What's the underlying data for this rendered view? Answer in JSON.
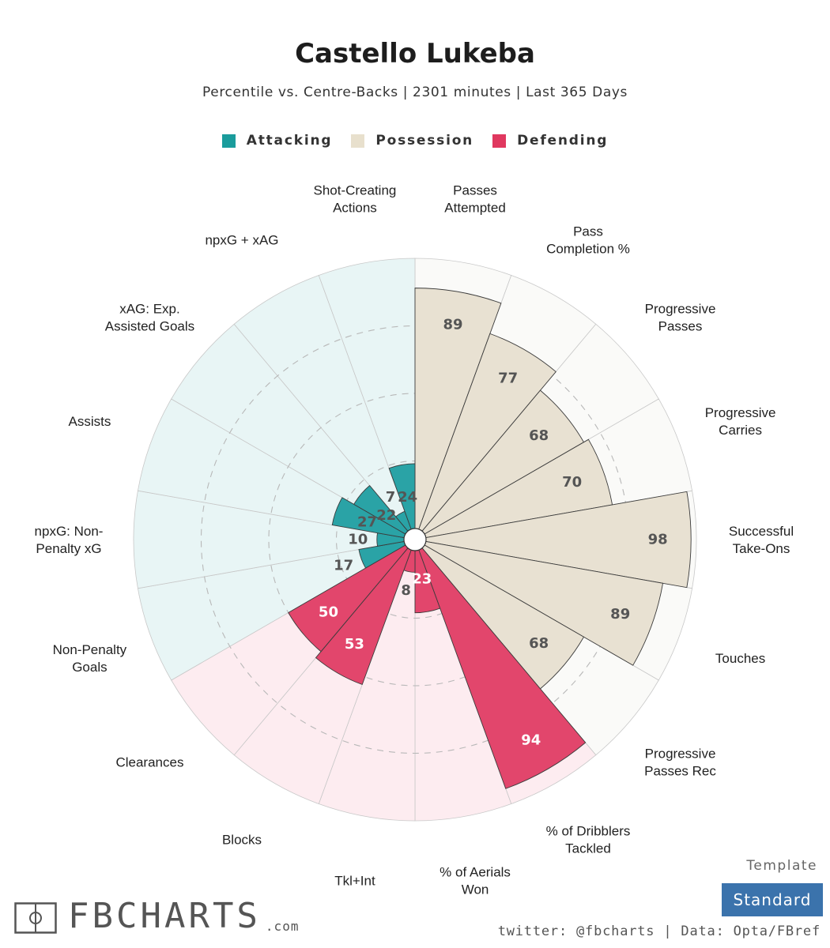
{
  "header": {
    "title": "Castello Lukeba",
    "subtitle": "Percentile vs. Centre-Backs | 2301 minutes | Last 365 Days"
  },
  "legend": [
    {
      "label": "Attacking",
      "color": "#1a9c9c"
    },
    {
      "label": "Possession",
      "color": "#e8e0cd"
    },
    {
      "label": "Defending",
      "color": "#e0385f"
    }
  ],
  "colors": {
    "attacking_fill": "#2aa3a6",
    "attacking_bg": "#e8f5f5",
    "possession_fill": "#e8e1d2",
    "possession_bg": "#fafaf8",
    "defending_fill": "#e2466c",
    "defending_bg": "#fdecf0"
  },
  "chart_data": {
    "type": "polar-bar",
    "title": "Castello Lukeba",
    "subtitle": "Percentile vs. Centre-Backs | 2301 minutes | Last 365 Days",
    "rlim": [
      0,
      100
    ],
    "grid": true,
    "categories": [
      {
        "label": "Passes\nAttempted",
        "value": 89,
        "group": "Possession"
      },
      {
        "label": "Pass\nCompletion %",
        "value": 77,
        "group": "Possession"
      },
      {
        "label": "Progressive\nPasses",
        "value": 68,
        "group": "Possession"
      },
      {
        "label": "Progressive\nCarries",
        "value": 70,
        "group": "Possession"
      },
      {
        "label": "Successful\nTake-Ons",
        "value": 98,
        "group": "Possession"
      },
      {
        "label": "Touches",
        "value": 89,
        "group": "Possession"
      },
      {
        "label": "Progressive\nPasses Rec",
        "value": 68,
        "group": "Possession"
      },
      {
        "label": "% of Dribblers\nTackled",
        "value": 94,
        "group": "Defending"
      },
      {
        "label": "% of Aerials\nWon",
        "value": 23,
        "group": "Defending"
      },
      {
        "label": "Tkl+Int",
        "value": 8,
        "group": "Defending"
      },
      {
        "label": "Blocks",
        "value": 53,
        "group": "Defending"
      },
      {
        "label": "Clearances",
        "value": 50,
        "group": "Defending"
      },
      {
        "label": "Non-Penalty\nGoals",
        "value": 17,
        "group": "Attacking"
      },
      {
        "label": "npxG: Non-\nPenalty xG",
        "value": 10,
        "group": "Attacking"
      },
      {
        "label": "Assists",
        "value": 27,
        "group": "Attacking"
      },
      {
        "label": "xAG: Exp.\nAssisted Goals",
        "value": 22,
        "group": "Attacking"
      },
      {
        "label": "npxG + xAG",
        "value": 7,
        "group": "Attacking"
      },
      {
        "label": "Shot-Creating\nActions",
        "value": 24,
        "group": "Attacking"
      }
    ]
  },
  "footer": {
    "logo_text": "FBCHARTS",
    "logo_suffix": ".com",
    "template_label": "Template",
    "template_value": "Standard",
    "credit": "twitter: @fbcharts | Data: Opta/FBref"
  }
}
